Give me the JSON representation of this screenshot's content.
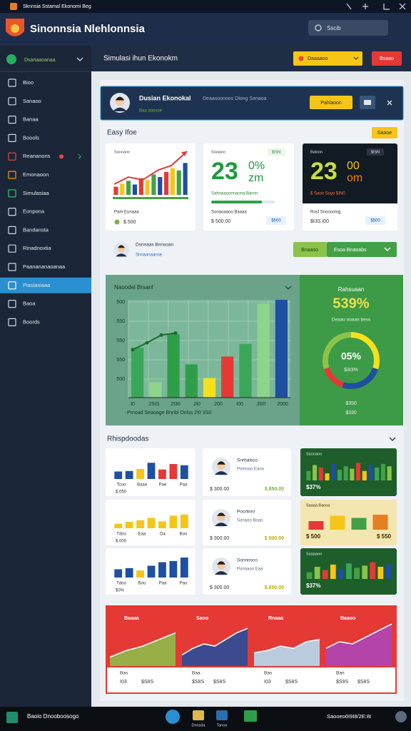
{
  "window": {
    "title": "Sknnsia Sstamal Ekonomi Beg"
  },
  "header": {
    "title": "Sinonnsia Nlehlonnsia",
    "search": "Sscib"
  },
  "sidebar": {
    "selector": "Dsanaaoanaa",
    "items": [
      "Bioo",
      "Sanaoo",
      "Banaa",
      "Boools",
      "Reananons",
      "Emonaoon",
      "Simulasiaa",
      "Eonpona",
      "Bandansta",
      "Rinadnoxtia",
      "Paanananaoanaa",
      "Piasiasiaaa",
      "Baoa",
      "Boords"
    ]
  },
  "toolbar": {
    "title": "Simulasi ihun Ekonokm",
    "select": "Daaaaoo",
    "button": "Bsaao"
  },
  "banner": {
    "title": "Dusian Ekonokal",
    "note": "Deaasoonoos Dlong Sanaoa",
    "tag": "Baa ooosoe",
    "button": "Pahlaoon"
  },
  "overview": {
    "title": "Easy Ifoe",
    "badge": "Saaoe",
    "trend": {
      "title": "Saooaoo",
      "bars": [
        22,
        30,
        38,
        28,
        45,
        40,
        55,
        48,
        62,
        72,
        66,
        86
      ],
      "label": "Pam Eunaaa",
      "value": "$.500"
    },
    "green": {
      "title": "Siaaaoo",
      "chip": "$ISN",
      "big": "23",
      "unit": "0%",
      "unit2": "zm",
      "subtitle": "Sahoaaoonnaona Barnn",
      "progress": 80,
      "footer": "Sonaoaaoo Baaaa",
      "value": "$ 500.00",
      "badge": "$500"
    },
    "dark": {
      "title": "Baloon",
      "chip": "$ISN",
      "big": "23",
      "unit": "00",
      "unit2": "om",
      "subtitle": "$ Saoo Soyo $IN0",
      "footer": "Rosl Snoooolog",
      "value": "$I3S.I00",
      "badge": "$500"
    }
  },
  "profile": {
    "name": "Dsnnaas Bnnsoan",
    "role": "Snnaanaanse",
    "button": "Bnaaso",
    "action": "Esoa Bnaoabs"
  },
  "main_chart": {
    "title": "Naoodel Brsanl",
    "yticks": [
      "500",
      "550",
      "550",
      "550",
      "500"
    ],
    "xlabels": [
      "I0",
      "2SIS",
      "2I30",
      "2I0",
      "200",
      "I00",
      "3S0",
      "2000"
    ],
    "caption": "Prnoad Seaoage Bnnbl Onlss 2I0 3S0",
    "bars": [
      51,
      16,
      65,
      34,
      20,
      42,
      55,
      96,
      100
    ],
    "line": [
      49,
      56,
      64,
      66
    ]
  },
  "gauge": {
    "title": "Rahsuaan",
    "value": "539%",
    "subtitle": "Deaao ooaan bess",
    "center": "05%",
    "center_sub": "$3I3%",
    "foot": "$350",
    "foot2": "$330",
    "segments": [
      30,
      25,
      15,
      30
    ]
  },
  "highlights": {
    "title": "Rhispdoodas",
    "charts": [
      {
        "bars": [
          30,
          32,
          40,
          65,
          38,
          60,
          55
        ],
        "labels": [
          "Tcoo",
          "Baaa",
          "Pae",
          "Paa"
        ],
        "value": "$.050"
      },
      {
        "bars": [
          20,
          28,
          35,
          45,
          30,
          55,
          60
        ],
        "labels": [
          "Tdoo",
          "Eaa",
          "Da",
          "Boo"
        ],
        "value": "$.000"
      },
      {
        "bars": [
          35,
          40,
          30,
          50,
          65,
          70,
          85
        ],
        "labels": [
          "Tdoo",
          "Boo",
          "Paa",
          "Pao"
        ],
        "value": "$0%"
      }
    ],
    "people": [
      {
        "name": "Snrbalsco",
        "role": "Pomooo Eaoo",
        "amount": "$ 300.00",
        "value": "$.850.00"
      },
      {
        "name": "Pocrlinnl",
        "role": "Sonaoo Boao",
        "amount": "$ 300.00",
        "value": "$ 000.00"
      },
      {
        "name": "Sonnosco",
        "role": "Ponoaoo Eaa",
        "amount": "$ 300.00",
        "value": "$.850.00"
      }
    ],
    "tiles": [
      {
        "title": "Saooaoo",
        "bars": [
          40,
          65,
          55,
          30,
          70,
          45,
          60,
          50,
          75,
          40,
          65,
          55,
          70,
          60
        ],
        "value": "$37%"
      },
      {
        "title": "Saaaa Baooa",
        "bars": [
          40,
          65,
          55,
          70
        ],
        "value": "$ 500",
        "value2": "$ 550"
      },
      {
        "title": "Saaaaoo",
        "bars": [
          30,
          55,
          40,
          65,
          45,
          70,
          50,
          60,
          75,
          55,
          65
        ],
        "value": "$37%"
      }
    ]
  },
  "footer_panel": {
    "charts": [
      {
        "title": "Baaaa",
        "values": [
          20,
          35,
          45,
          60,
          75
        ],
        "label": "Bas",
        "value": "I03",
        "value2": "$S8S"
      },
      {
        "title": "Saoo",
        "values": [
          25,
          40,
          50,
          45,
          60,
          75,
          85
        ],
        "label": "Baa",
        "value": "$S8S",
        "value2": "$S8S"
      },
      {
        "title": "Rnaaa",
        "values": [
          30,
          35,
          45,
          40,
          55,
          60
        ],
        "label": "Bas",
        "value": "I03",
        "value2": "$S8S"
      },
      {
        "title": "Baaoo",
        "values": [
          40,
          55,
          50,
          65,
          80,
          95
        ],
        "label": "Ban",
        "value": "$S9S",
        "value2": "$S8S"
      }
    ]
  },
  "taskbar": {
    "start": "Baoio Dnooboosogo",
    "apps": [
      "Dnnsda",
      "Tanoo"
    ],
    "clock": "Saooeo0I9I8/2E:8I"
  }
}
